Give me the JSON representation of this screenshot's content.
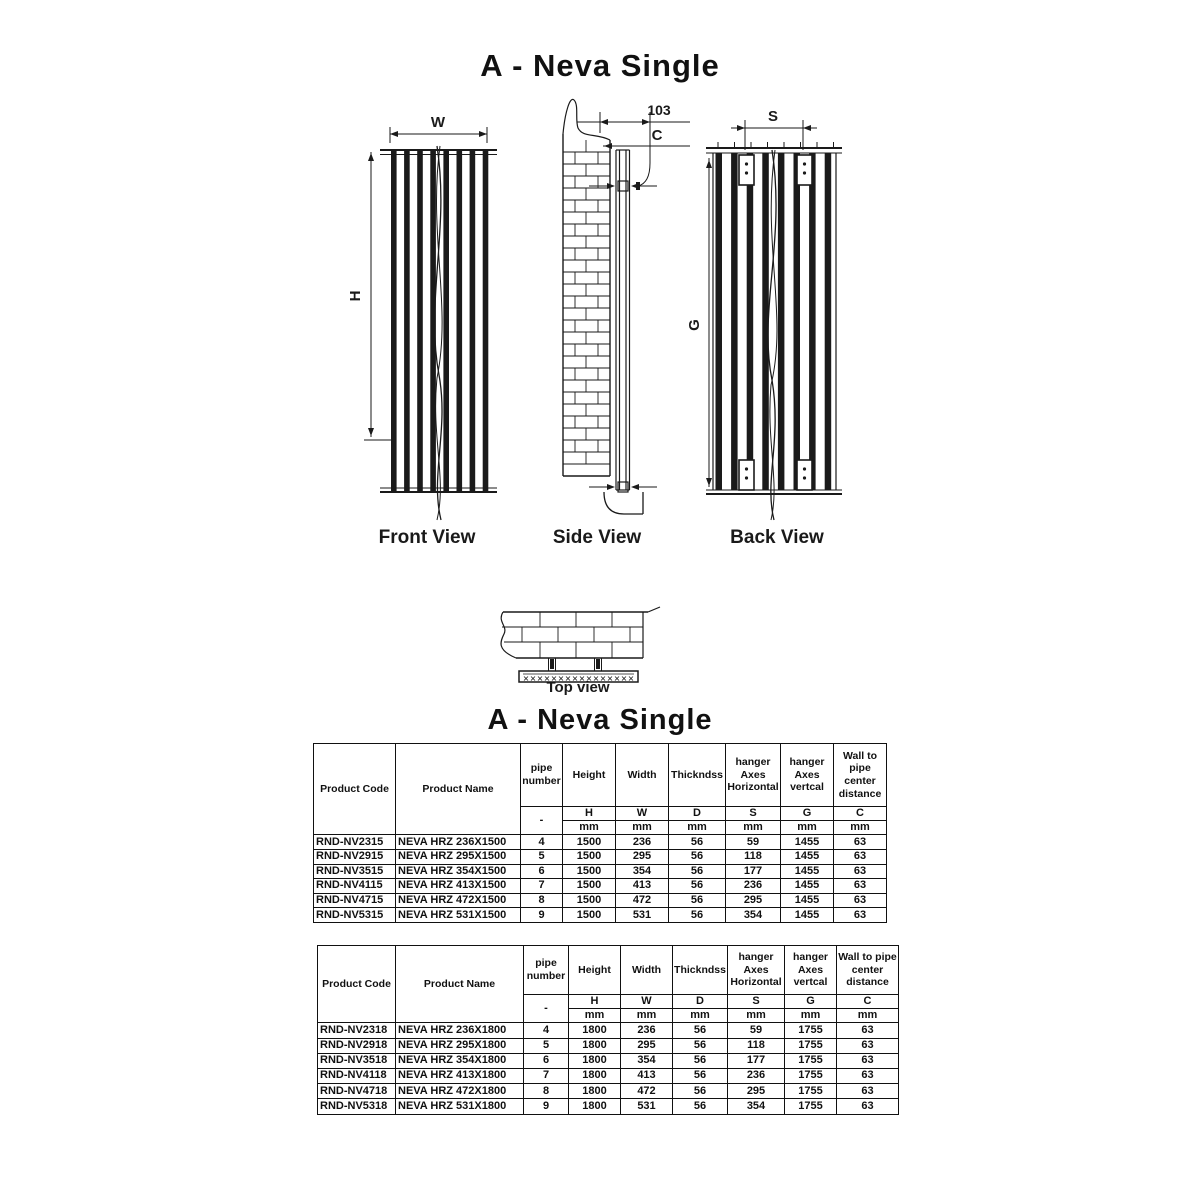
{
  "titles": {
    "main": "A - Neva Single",
    "table_section": "A - Neva Single"
  },
  "colors": {
    "ink": "#1a1a1a",
    "paper": "#ffffff"
  },
  "diagram": {
    "front": {
      "caption": "Front View",
      "width_label": "W",
      "height_label": "H"
    },
    "side": {
      "caption": "Side View",
      "wall_offset_dim": "103",
      "wall_distance_label": "C"
    },
    "back": {
      "caption": "Back View",
      "hanger_span_label": "S",
      "hanger_height_label": "G"
    },
    "top": {
      "caption": "Top view"
    }
  },
  "table_header": {
    "product_code": "Product Code",
    "product_name": "Product Name",
    "pipe_number": "pipe number",
    "height": "Height",
    "width": "Width",
    "thickness": "Thickndss",
    "hanger_axes_horizontal": "hanger Axes Horizontal",
    "hanger_axes_vertical": "hanger Axes vertcal",
    "wall_to_pipe_center": "Wall to pipe center distance",
    "dash": "-",
    "letters": [
      "H",
      "W",
      "D",
      "S",
      "G",
      "C"
    ],
    "unit": "mm"
  },
  "tables": [
    {
      "rows": [
        [
          "RND-NV2315",
          "NEVA HRZ 236X1500",
          "4",
          "1500",
          "236",
          "56",
          "59",
          "1455",
          "63"
        ],
        [
          "RND-NV2915",
          "NEVA HRZ 295X1500",
          "5",
          "1500",
          "295",
          "56",
          "118",
          "1455",
          "63"
        ],
        [
          "RND-NV3515",
          "NEVA HRZ 354X1500",
          "6",
          "1500",
          "354",
          "56",
          "177",
          "1455",
          "63"
        ],
        [
          "RND-NV4115",
          "NEVA HRZ 413X1500",
          "7",
          "1500",
          "413",
          "56",
          "236",
          "1455",
          "63"
        ],
        [
          "RND-NV4715",
          "NEVA HRZ 472X1500",
          "8",
          "1500",
          "472",
          "56",
          "295",
          "1455",
          "63"
        ],
        [
          "RND-NV5315",
          "NEVA HRZ 531X1500",
          "9",
          "1500",
          "531",
          "56",
          "354",
          "1455",
          "63"
        ]
      ]
    },
    {
      "rows": [
        [
          "RND-NV2318",
          "NEVA HRZ 236X1800",
          "4",
          "1800",
          "236",
          "56",
          "59",
          "1755",
          "63"
        ],
        [
          "RND-NV2918",
          "NEVA HRZ 295X1800",
          "5",
          "1800",
          "295",
          "56",
          "118",
          "1755",
          "63"
        ],
        [
          "RND-NV3518",
          "NEVA HRZ 354X1800",
          "6",
          "1800",
          "354",
          "56",
          "177",
          "1755",
          "63"
        ],
        [
          "RND-NV4118",
          "NEVA HRZ 413X1800",
          "7",
          "1800",
          "413",
          "56",
          "236",
          "1755",
          "63"
        ],
        [
          "RND-NV4718",
          "NEVA HRZ 472X1800",
          "8",
          "1800",
          "472",
          "56",
          "295",
          "1755",
          "63"
        ],
        [
          "RND-NV5318",
          "NEVA HRZ 531X1800",
          "9",
          "1800",
          "531",
          "56",
          "354",
          "1755",
          "63"
        ]
      ]
    }
  ]
}
